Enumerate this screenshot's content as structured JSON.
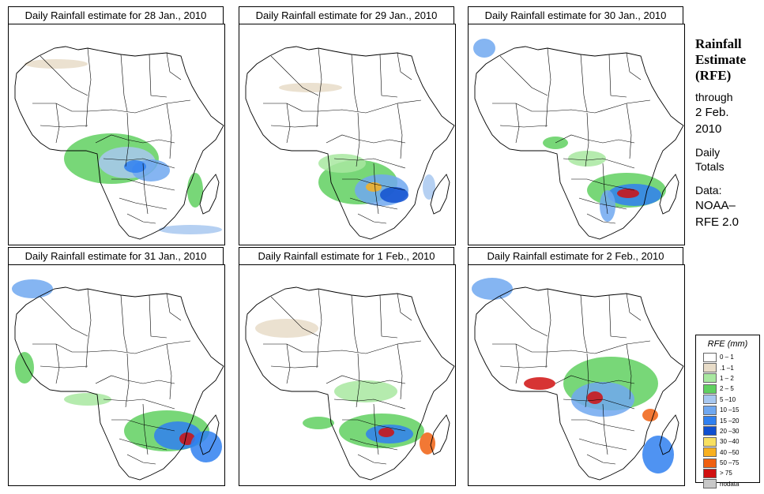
{
  "panels": [
    {
      "title": "Daily Rainfall estimate for  28 Jan., 2010",
      "date": "28 Jan., 2010"
    },
    {
      "title": "Daily Rainfall estimate for  29 Jan., 2010",
      "date": "29 Jan., 2010"
    },
    {
      "title": "Daily Rainfall estimate for  30 Jan., 2010",
      "date": "30 Jan., 2010"
    },
    {
      "title": "Daily Rainfall estimate for  31 Jan., 2010",
      "date": "31 Jan., 2010"
    },
    {
      "title": "Daily Rainfall estimate for  1 Feb., 2010",
      "date": "1 Feb., 2010"
    },
    {
      "title": "Daily Rainfall estimate for  2 Feb., 2010",
      "date": "2 Feb., 2010"
    }
  ],
  "side_info": {
    "title_line1": "Rainfall",
    "title_line2": "Estimate",
    "title_line3": "(RFE)",
    "through": "through",
    "date_line1": "2 Feb.",
    "date_line2": "2010",
    "daily": "Daily",
    "totals": "Totals",
    "data_label": "Data:",
    "source_line1": "NOAA–",
    "source_line2": "RFE 2.0"
  },
  "legend": {
    "title": "RFE (mm)",
    "items": [
      {
        "label": "0 – 1",
        "color": "#ffffff"
      },
      {
        "label": ".1 –1",
        "color": "#e8dcc8"
      },
      {
        "label": "1 – 2",
        "color": "#a8e8a0"
      },
      {
        "label": "2 – 5",
        "color": "#60d060"
      },
      {
        "label": "5 –10",
        "color": "#a8c8f0"
      },
      {
        "label": "10 –15",
        "color": "#70a8f0"
      },
      {
        "label": "15 –20",
        "color": "#3080f0"
      },
      {
        "label": "20 –30",
        "color": "#1050d0"
      },
      {
        "label": "30 –40",
        "color": "#f8e060"
      },
      {
        "label": "40 –50",
        "color": "#f8b020"
      },
      {
        "label": "50 –75",
        "color": "#f06010"
      },
      {
        "label": "> 75",
        "color": "#d01010"
      },
      {
        "label": "nodata",
        "color": "#c8c8c8"
      }
    ]
  }
}
